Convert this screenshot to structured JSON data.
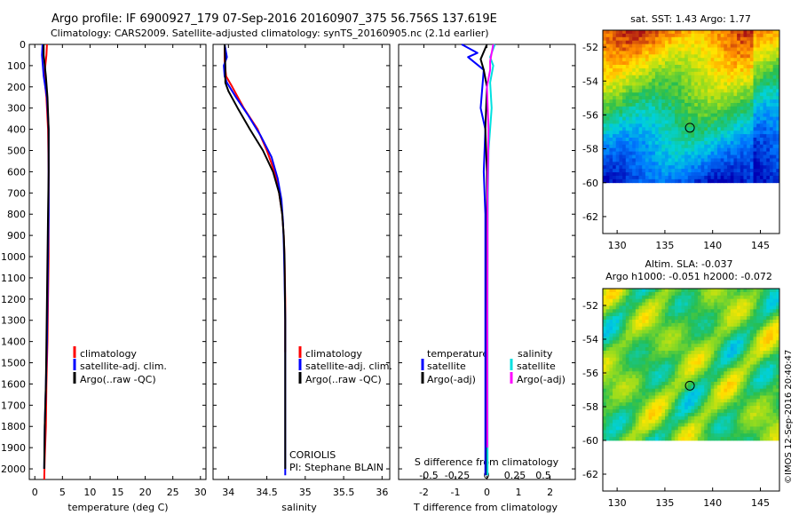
{
  "header": {
    "title": "Argo profile: IF 6900927_179 07-Sep-2016 20160907_375 56.756S 137.619E",
    "subtitle": "Climatology: CARS2009. Satellite-adjusted climatology: synTS_20160905.nc (2.1d earlier)"
  },
  "colors": {
    "climatology": "#ff0000",
    "satellite": "#0000ff",
    "argo": "#000000",
    "sal_satellite": "#00e0e0",
    "sal_argo": "#ff00ff"
  },
  "credit": "©IMOS 12-Sep-2016 20:40:47",
  "chart_data": [
    {
      "type": "line",
      "xlabel": "temperature (deg C)",
      "ylabel": "",
      "xlim": [
        -1,
        31
      ],
      "ylim": [
        2050,
        0
      ],
      "xticks": [
        0,
        5,
        10,
        15,
        20,
        25,
        30
      ],
      "yticks": [
        0,
        100,
        200,
        300,
        400,
        500,
        600,
        700,
        800,
        900,
        1000,
        1100,
        1200,
        1300,
        1400,
        1500,
        1600,
        1700,
        1800,
        1900,
        2000
      ],
      "legend": [
        "climatology",
        "satellite-adj. clim.",
        "Argo(..raw -QC)"
      ],
      "series": [
        {
          "name": "climatology",
          "color": "#ff0000",
          "x": [
            2.2,
            2.1,
            1.7,
            2.1,
            2.4,
            2.5,
            2.5,
            2.5,
            2.4,
            2.3,
            2.2,
            2.1,
            2.0,
            1.8,
            1.7
          ],
          "y": [
            0,
            50,
            150,
            250,
            400,
            600,
            800,
            1000,
            1200,
            1400,
            1500,
            1600,
            1800,
            1950,
            2050
          ]
        },
        {
          "name": "satellite-adj. clim.",
          "color": "#0000ff",
          "x": [
            1.4,
            1.3,
            1.6,
            2.2,
            2.5,
            2.5,
            2.5,
            2.4,
            2.3,
            2.2,
            2.1,
            2.0,
            1.8,
            1.7
          ],
          "y": [
            0,
            50,
            150,
            250,
            400,
            600,
            800,
            1000,
            1200,
            1400,
            1500,
            1600,
            1800,
            2000
          ]
        },
        {
          "name": "Argo(..raw -QC)",
          "color": "#000000",
          "x": [
            1.6,
            1.6,
            2.0,
            2.3,
            2.5,
            2.5,
            2.4,
            2.3,
            2.2,
            2.1,
            2.0,
            1.8,
            1.7
          ],
          "y": [
            0,
            50,
            150,
            250,
            400,
            600,
            800,
            1000,
            1200,
            1400,
            1600,
            1800,
            2000
          ]
        }
      ]
    },
    {
      "type": "line",
      "xlabel": "salinity",
      "ylabel": "",
      "xlim": [
        33.8,
        36.1
      ],
      "ylim": [
        2050,
        0
      ],
      "xticks": [
        34,
        34.5,
        35,
        35.5,
        36
      ],
      "legend": [
        "climatology",
        "satellite-adj. clim.",
        "Argo(..raw -QC)"
      ],
      "series": [
        {
          "name": "climatology",
          "color": "#ff0000",
          "x": [
            33.95,
            33.95,
            33.97,
            34.05,
            34.2,
            34.38,
            34.5,
            34.6,
            34.66,
            34.7,
            34.72,
            34.73,
            34.74,
            34.74,
            34.74
          ],
          "y": [
            0,
            80,
            150,
            200,
            300,
            400,
            500,
            600,
            700,
            800,
            900,
            1000,
            1200,
            1400,
            1450
          ]
        },
        {
          "name": "satellite-adj. clim.",
          "color": "#0000ff",
          "x": [
            33.95,
            33.98,
            33.94,
            33.95,
            33.98,
            34.1,
            34.25,
            34.42,
            34.56,
            34.64,
            34.69,
            34.71,
            34.72,
            34.73,
            34.74,
            34.74,
            34.74
          ],
          "y": [
            0,
            60,
            100,
            150,
            180,
            250,
            330,
            430,
            530,
            630,
            730,
            830,
            930,
            1100,
            1300,
            1700,
            2030
          ]
        },
        {
          "name": "Argo(..raw -QC)",
          "color": "#000000",
          "x": [
            33.95,
            33.96,
            33.96,
            34.0,
            34.12,
            34.28,
            34.45,
            34.58,
            34.66,
            34.7,
            34.72,
            34.73,
            34.74,
            34.74
          ],
          "y": [
            0,
            100,
            180,
            220,
            300,
            400,
            500,
            600,
            700,
            800,
            900,
            1000,
            1300,
            2000
          ]
        }
      ],
      "annotations": [
        "CORIOLIS",
        "PI: Stephane BLAIN"
      ]
    },
    {
      "type": "line",
      "xlabel": "T difference from climatology",
      "ylabel": "",
      "xlim": [
        -2.8,
        2.8
      ],
      "ylim": [
        2050,
        0
      ],
      "xticks": [
        -2,
        -1,
        0,
        1,
        2
      ],
      "top_xlabel": "S difference from climatology",
      "top_xticks": [
        "-0.5",
        "-0.25",
        "0",
        "0.25",
        "0.5"
      ],
      "legend_groups": [
        {
          "title": "temperature",
          "items": [
            "satellite",
            "Argo(-adj)"
          ]
        },
        {
          "title": "salinity",
          "items": [
            "satellite",
            "Argo(-adj)"
          ]
        }
      ],
      "series": [
        {
          "name": "temperature satellite",
          "color": "#0000ff",
          "x": [
            -0.8,
            -0.3,
            -0.6,
            -0.1,
            -0.2,
            -0.05,
            -0.1,
            -0.05,
            -0.05,
            -0.05,
            -0.05,
            -0.05,
            -0.05
          ],
          "y": [
            0,
            40,
            60,
            120,
            300,
            400,
            600,
            800,
            1000,
            1200,
            1500,
            1800,
            2030
          ]
        },
        {
          "name": "temperature Argo(-adj)",
          "color": "#000000",
          "x": [
            0.0,
            -0.2,
            -0.1,
            0.0,
            -0.05,
            0.0,
            0.0,
            0.0,
            0.0,
            0.0,
            0.0,
            0.0
          ],
          "y": [
            0,
            70,
            120,
            200,
            400,
            600,
            800,
            1000,
            1200,
            1500,
            1800,
            2030
          ]
        },
        {
          "name": "salinity satellite",
          "color": "#00e0e0",
          "x": [
            0.25,
            0.1,
            0.2,
            0.1,
            0.15,
            0.05,
            0.03,
            0.02,
            0.02,
            0.02,
            0.02,
            0.02
          ],
          "y": [
            0,
            60,
            100,
            180,
            300,
            500,
            700,
            900,
            1200,
            1500,
            1800,
            2030
          ]
        },
        {
          "name": "salinity Argo(-adj)",
          "color": "#ff00ff",
          "x": [
            0.2,
            0.1,
            0.1,
            0.0,
            0.05,
            0.02,
            0.02,
            0.01,
            0.01,
            0.01
          ],
          "y": [
            0,
            80,
            120,
            200,
            400,
            700,
            1000,
            1300,
            1600,
            1900
          ]
        }
      ]
    },
    {
      "type": "heatmap",
      "title": "sat. SST: 1.43 Argo: 1.77",
      "xlim": [
        128.5,
        147
      ],
      "ylim": [
        -63,
        -51
      ],
      "xticks": [
        130,
        135,
        140,
        145
      ],
      "yticks": [
        -52,
        -54,
        -56,
        -58,
        -60,
        -62
      ],
      "data_extent_lat": [
        -60,
        -51
      ],
      "marker": {
        "lon": 137.619,
        "lat": -56.756
      }
    },
    {
      "type": "heatmap",
      "title": "Altim. SLA: -0.037",
      "subtitle": "Argo h1000: -0.051 h2000: -0.072",
      "xlim": [
        128.5,
        147
      ],
      "ylim": [
        -63,
        -51
      ],
      "xticks": [
        130,
        135,
        140,
        145
      ],
      "yticks": [
        -52,
        -54,
        -56,
        -58,
        -60,
        -62
      ],
      "data_extent_lat": [
        -60,
        -51
      ],
      "marker": {
        "lon": 137.619,
        "lat": -56.756
      }
    }
  ]
}
